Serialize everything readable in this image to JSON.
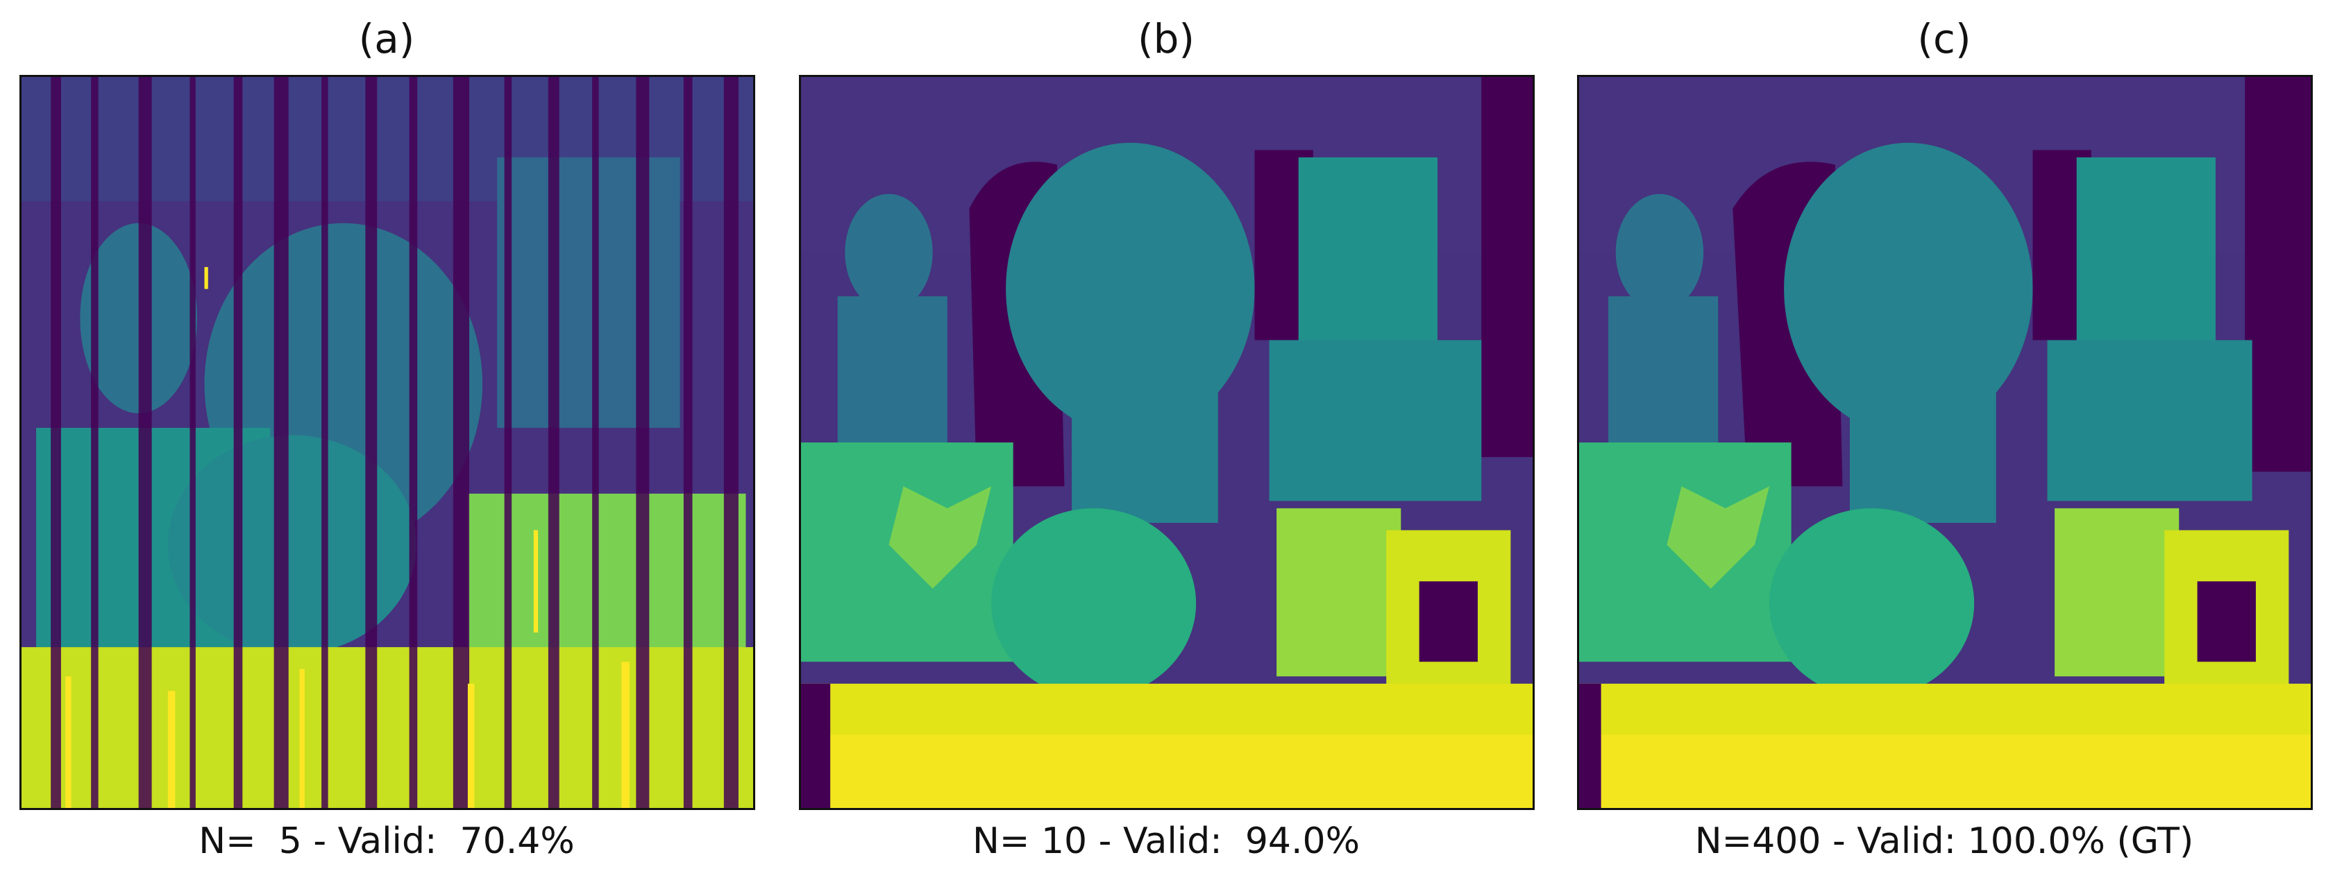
{
  "panels": [
    {
      "title": "(a)",
      "caption": "N=  5 - Valid:  70.4%"
    },
    {
      "title": "(b)",
      "caption": "N= 10 - Valid:  94.0%"
    },
    {
      "title": "(c)",
      "caption": "N=400 - Valid: 100.0% (GT)"
    }
  ],
  "colormap": {
    "invalid": "#440154",
    "far": "#46327e",
    "mid_far": "#3b528b",
    "mid": "#2c728e",
    "teal": "#21918c",
    "green_teal": "#28ae80",
    "green": "#5ec962",
    "yellow_green": "#addc30",
    "near": "#fde725"
  }
}
